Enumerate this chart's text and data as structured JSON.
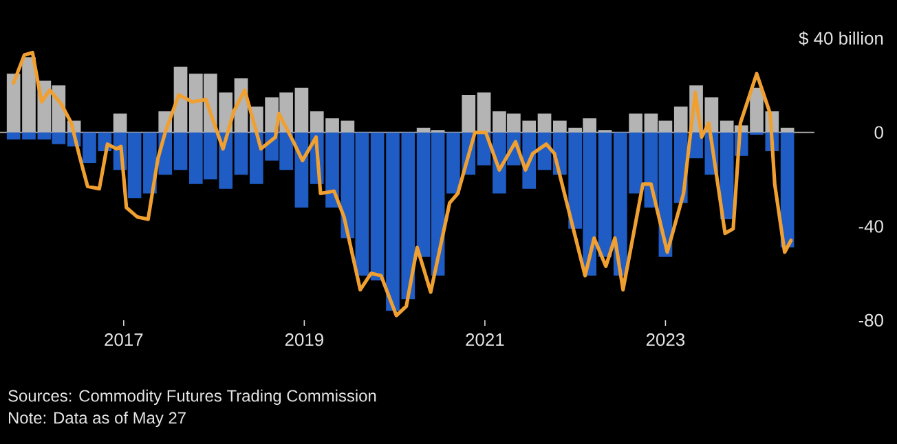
{
  "chart_data": {
    "type": "bar",
    "xlim": [
      2015.63,
      2024.65
    ],
    "xticks": [
      2017,
      2019,
      2021,
      2023
    ],
    "ylim": [
      -80,
      40
    ],
    "stacked": true,
    "ref_lines": [
      {
        "axis": "y",
        "value": 0,
        "color": "#b2b2b2"
      }
    ],
    "yticks": [
      {
        "value": 40,
        "label": "$ 40 billion"
      },
      0,
      -40,
      -80
    ],
    "series": [
      {
        "color": "#b4b4b4",
        "x": [
          2015.78,
          2015.95,
          2016.12,
          2016.28,
          2016.45,
          2016.62,
          2016.79,
          2016.96,
          2017.12,
          2017.29,
          2017.46,
          2017.63,
          2017.8,
          2017.96,
          2018.13,
          2018.3,
          2018.47,
          2018.64,
          2018.8,
          2018.97,
          2019.14,
          2019.31,
          2019.48,
          2019.64,
          2019.81,
          2019.98,
          2020.15,
          2020.32,
          2020.48,
          2020.65,
          2020.82,
          2020.99,
          2021.16,
          2021.32,
          2021.49,
          2021.66,
          2021.83,
          2022.0,
          2022.16,
          2022.33,
          2022.5,
          2022.67,
          2022.84,
          2023.0,
          2023.17,
          2023.34,
          2023.51,
          2023.68,
          2023.84,
          2024.01,
          2024.18,
          2024.35
        ],
        "values": [
          25,
          32,
          22,
          20,
          5,
          0,
          0,
          8,
          0,
          0,
          9,
          28,
          25,
          25,
          17,
          23,
          11,
          15,
          17,
          19,
          9,
          6,
          5,
          0,
          0,
          0,
          0,
          2,
          1,
          0,
          16,
          17,
          9,
          8,
          5,
          8,
          5,
          2,
          6,
          1,
          0,
          8,
          8,
          5,
          11,
          20,
          15,
          5,
          3,
          19,
          9,
          2
        ]
      },
      {
        "color": "#1f5cc4",
        "x": [
          2015.78,
          2015.95,
          2016.12,
          2016.28,
          2016.45,
          2016.62,
          2016.79,
          2016.96,
          2017.12,
          2017.29,
          2017.46,
          2017.63,
          2017.8,
          2017.96,
          2018.13,
          2018.3,
          2018.47,
          2018.64,
          2018.8,
          2018.97,
          2019.14,
          2019.31,
          2019.48,
          2019.64,
          2019.81,
          2019.98,
          2020.15,
          2020.32,
          2020.48,
          2020.65,
          2020.82,
          2020.99,
          2021.16,
          2021.32,
          2021.49,
          2021.66,
          2021.83,
          2022.0,
          2022.16,
          2022.33,
          2022.5,
          2022.67,
          2022.84,
          2023.0,
          2023.17,
          2023.34,
          2023.51,
          2023.68,
          2023.84,
          2024.01,
          2024.18,
          2024.35
        ],
        "values": [
          -3,
          -3,
          -3,
          -5,
          -6,
          -13,
          -8,
          -16,
          -28,
          -26,
          -18,
          -16,
          -22,
          -20,
          -24,
          -18,
          -22,
          -12,
          -16,
          -32,
          -22,
          -32,
          -45,
          -61,
          -63,
          -76,
          -71,
          -53,
          -61,
          -26,
          -18,
          -14,
          -26,
          -14,
          -24,
          -16,
          -18,
          -41,
          -61,
          -53,
          -61,
          -26,
          -32,
          -53,
          -30,
          -11,
          -18,
          -37,
          -10,
          -1,
          -8,
          -49
        ]
      },
      {
        "type": "line",
        "color": "#f0a030",
        "x": [
          2015.78,
          2015.9,
          2015.99,
          2016.09,
          2016.18,
          2016.31,
          2016.42,
          2016.51,
          2016.6,
          2016.73,
          2016.82,
          2016.92,
          2016.97,
          2017.03,
          2017.15,
          2017.27,
          2017.38,
          2017.46,
          2017.61,
          2017.76,
          2017.91,
          2018.1,
          2018.22,
          2018.34,
          2018.45,
          2018.52,
          2018.68,
          2018.72,
          2018.88,
          2018.98,
          2019.13,
          2019.18,
          2019.33,
          2019.44,
          2019.62,
          2019.74,
          2019.85,
          2020.02,
          2020.13,
          2020.25,
          2020.4,
          2020.61,
          2020.7,
          2020.89,
          2021.01,
          2021.16,
          2021.34,
          2021.45,
          2021.53,
          2021.68,
          2021.77,
          2021.92,
          2022.11,
          2022.21,
          2022.34,
          2022.44,
          2022.53,
          2022.75,
          2022.84,
          2023.02,
          2023.2,
          2023.33,
          2023.4,
          2023.48,
          2023.66,
          2023.75,
          2023.83,
          2024.01,
          2024.16,
          2024.21,
          2024.32,
          2024.39
        ],
        "values": [
          21,
          33,
          34,
          13,
          18,
          12,
          4,
          -10,
          -23,
          -24,
          -5,
          -7,
          -6,
          -32,
          -36,
          -37,
          -11,
          0,
          16,
          13,
          14,
          -7,
          9,
          18,
          3,
          -7,
          -2,
          8,
          -4,
          -12,
          -2,
          -26,
          -25,
          -36,
          -67,
          -60,
          -61,
          -78,
          -74,
          -49,
          -68,
          -30,
          -26,
          0,
          0,
          -16,
          -4,
          -16,
          -9,
          -5,
          -9,
          -32,
          -61,
          -45,
          -57,
          -45,
          -67,
          -22,
          -22,
          -51,
          -26,
          17,
          -2,
          4,
          -43,
          -41,
          4,
          25,
          8,
          -22,
          -51,
          -46
        ]
      }
    ],
    "annotations": [
      "Sources: Commodity Futures Trading Commission",
      "Note: Data as of May 27"
    ]
  }
}
